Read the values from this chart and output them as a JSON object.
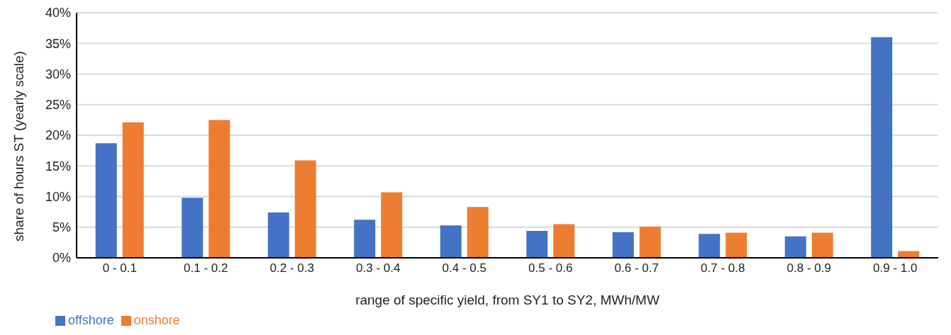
{
  "chart_data": {
    "type": "bar",
    "xlabel": "range of specific yield, from SY1 to SY2, MWh/MW",
    "ylabel": "share of hours ST (yearly scale)",
    "categories": [
      "0 - 0.1",
      "0.1 - 0.2",
      "0.2 - 0.3",
      "0.3 - 0.4",
      "0.4 - 0.5",
      "0.5 - 0.6",
      "0.6 - 0.7",
      "0.7 - 0.8",
      "0.8 - 0.9",
      "0.9 - 1.0"
    ],
    "series": [
      {
        "name": "offshore",
        "color": "#4472c4",
        "values": [
          18.7,
          9.8,
          7.4,
          6.2,
          5.3,
          4.4,
          4.2,
          3.9,
          3.5,
          36.0
        ]
      },
      {
        "name": "onshore",
        "color": "#ed7d31",
        "values": [
          22.1,
          22.5,
          15.9,
          10.7,
          8.3,
          5.5,
          5.1,
          4.1,
          4.1,
          1.1
        ]
      }
    ],
    "ylim": [
      0,
      40
    ],
    "yticks": [
      {
        "value": 0,
        "label": "0%"
      },
      {
        "value": 5,
        "label": "5%"
      },
      {
        "value": 10,
        "label": "10%"
      },
      {
        "value": 15,
        "label": "15%"
      },
      {
        "value": 20,
        "label": "20%"
      },
      {
        "value": 25,
        "label": "25%"
      },
      {
        "value": 30,
        "label": "30%"
      },
      {
        "value": 35,
        "label": "35%"
      },
      {
        "value": 40,
        "label": "40%"
      }
    ],
    "grid": "y",
    "legend": "bottom left"
  }
}
